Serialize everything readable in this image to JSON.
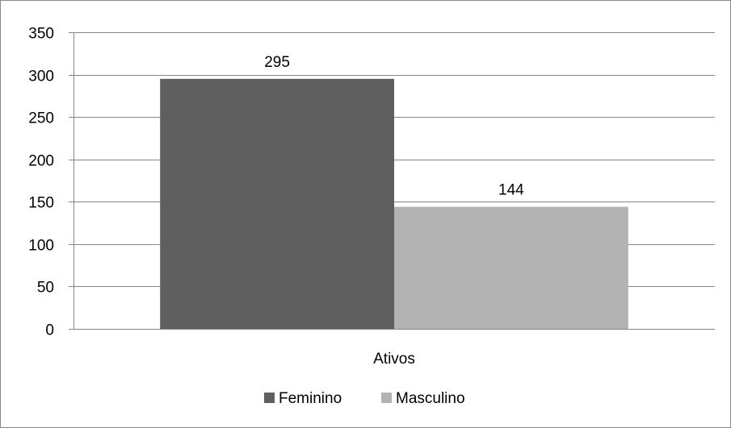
{
  "chart_data": {
    "type": "bar",
    "categories": [
      "Ativos"
    ],
    "series": [
      {
        "name": "Feminino",
        "values": [
          295
        ],
        "color": "#5f5f5f"
      },
      {
        "name": "Masculino",
        "values": [
          144
        ],
        "color": "#b3b3b3"
      }
    ],
    "data_labels": [
      "295",
      "144"
    ],
    "title": "",
    "xlabel": "",
    "ylabel": "",
    "ylim": [
      0,
      350
    ],
    "yticks": [
      0,
      50,
      100,
      150,
      200,
      250,
      300,
      350
    ],
    "grid": true,
    "legend_position": "bottom"
  }
}
